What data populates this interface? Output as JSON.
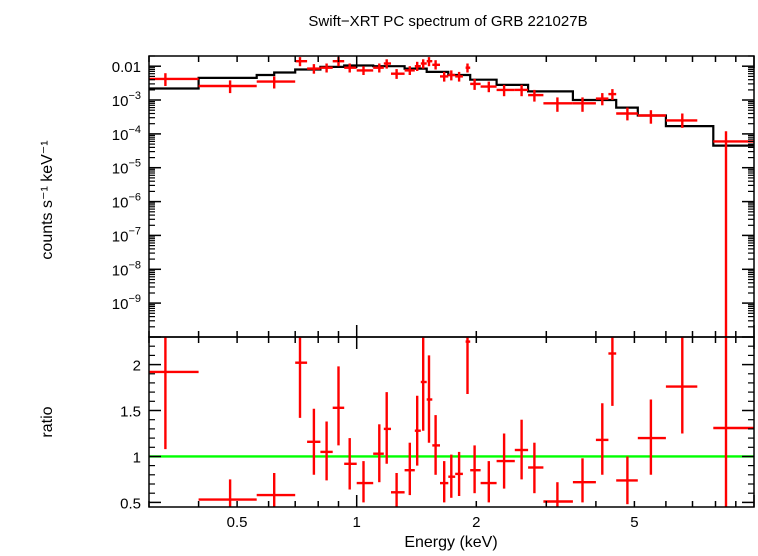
{
  "chart_data": [
    {
      "type": "scatter",
      "panel": "spectrum",
      "title": "Swift−XRT PC spectrum of GRB 221027B",
      "ylabel": "counts s⁻¹ keV⁻¹",
      "x_scale": "log",
      "y_scale": "log",
      "xlim": [
        0.3,
        10
      ],
      "ylim": [
        1e-10,
        0.02
      ],
      "colors": {
        "data": "#ff0000",
        "model": "#000000"
      },
      "y_ticks": [
        {
          "value": 0.01,
          "base": "0.01",
          "exp": ""
        },
        {
          "value": 0.001,
          "base": "10",
          "exp": "−3"
        },
        {
          "value": 0.0001,
          "base": "10",
          "exp": "−4"
        },
        {
          "value": 1e-05,
          "base": "10",
          "exp": "−5"
        },
        {
          "value": 1e-06,
          "base": "10",
          "exp": "−6"
        },
        {
          "value": 1e-07,
          "base": "10",
          "exp": "−7"
        },
        {
          "value": 1e-08,
          "base": "10",
          "exp": "−8"
        },
        {
          "value": 1e-09,
          "base": "10",
          "exp": "−9"
        }
      ],
      "data_points": [
        {
          "x": 0.33,
          "xlo": 0.3,
          "xhi": 0.4,
          "y": 0.0042,
          "ylo": 0.0026,
          "yhi": 0.0062
        },
        {
          "x": 0.48,
          "xlo": 0.4,
          "xhi": 0.56,
          "y": 0.0026,
          "ylo": 0.0016,
          "yhi": 0.0038
        },
        {
          "x": 0.62,
          "xlo": 0.56,
          "xhi": 0.7,
          "y": 0.0035,
          "ylo": 0.0022,
          "yhi": 0.005
        },
        {
          "x": 0.72,
          "xlo": 0.7,
          "xhi": 0.75,
          "y": 0.014,
          "ylo": 0.01,
          "yhi": 0.0185
        },
        {
          "x": 0.78,
          "xlo": 0.75,
          "xhi": 0.81,
          "y": 0.0085,
          "ylo": 0.006,
          "yhi": 0.0115
        },
        {
          "x": 0.84,
          "xlo": 0.81,
          "xhi": 0.87,
          "y": 0.009,
          "ylo": 0.0065,
          "yhi": 0.012
        },
        {
          "x": 0.9,
          "xlo": 0.87,
          "xhi": 0.93,
          "y": 0.014,
          "ylo": 0.01,
          "yhi": 0.0185
        },
        {
          "x": 0.96,
          "xlo": 0.93,
          "xhi": 1.0,
          "y": 0.009,
          "ylo": 0.0065,
          "yhi": 0.012
        },
        {
          "x": 1.04,
          "xlo": 1.0,
          "xhi": 1.1,
          "y": 0.0075,
          "ylo": 0.0055,
          "yhi": 0.01
        },
        {
          "x": 1.14,
          "xlo": 1.1,
          "xhi": 1.17,
          "y": 0.009,
          "ylo": 0.0065,
          "yhi": 0.012
        },
        {
          "x": 1.19,
          "xlo": 1.17,
          "xhi": 1.22,
          "y": 0.012,
          "ylo": 0.0085,
          "yhi": 0.016
        },
        {
          "x": 1.26,
          "xlo": 1.22,
          "xhi": 1.32,
          "y": 0.006,
          "ylo": 0.0042,
          "yhi": 0.0082
        },
        {
          "x": 1.36,
          "xlo": 1.32,
          "xhi": 1.4,
          "y": 0.0075,
          "ylo": 0.0055,
          "yhi": 0.01
        },
        {
          "x": 1.42,
          "xlo": 1.4,
          "xhi": 1.45,
          "y": 0.01,
          "ylo": 0.0072,
          "yhi": 0.0135
        },
        {
          "x": 1.47,
          "xlo": 1.45,
          "xhi": 1.5,
          "y": 0.012,
          "ylo": 0.0085,
          "yhi": 0.016
        },
        {
          "x": 1.52,
          "xlo": 1.5,
          "xhi": 1.55,
          "y": 0.014,
          "ylo": 0.01,
          "yhi": 0.0185
        },
        {
          "x": 1.58,
          "xlo": 1.55,
          "xhi": 1.62,
          "y": 0.011,
          "ylo": 0.008,
          "yhi": 0.015
        },
        {
          "x": 1.66,
          "xlo": 1.62,
          "xhi": 1.7,
          "y": 0.005,
          "ylo": 0.0035,
          "yhi": 0.0068
        },
        {
          "x": 1.73,
          "xlo": 1.7,
          "xhi": 1.77,
          "y": 0.0055,
          "ylo": 0.0038,
          "yhi": 0.0075
        },
        {
          "x": 1.81,
          "xlo": 1.77,
          "xhi": 1.85,
          "y": 0.005,
          "ylo": 0.0035,
          "yhi": 0.0068
        },
        {
          "x": 1.9,
          "xlo": 1.88,
          "xhi": 1.93,
          "y": 0.009,
          "ylo": 0.0065,
          "yhi": 0.012
        },
        {
          "x": 1.98,
          "xlo": 1.93,
          "xhi": 2.05,
          "y": 0.003,
          "ylo": 0.002,
          "yhi": 0.0042
        },
        {
          "x": 2.15,
          "xlo": 2.05,
          "xhi": 2.25,
          "y": 0.0025,
          "ylo": 0.0017,
          "yhi": 0.0035
        },
        {
          "x": 2.35,
          "xlo": 2.25,
          "xhi": 2.5,
          "y": 0.002,
          "ylo": 0.0013,
          "yhi": 0.0028
        },
        {
          "x": 2.6,
          "xlo": 2.5,
          "xhi": 2.7,
          "y": 0.002,
          "ylo": 0.0013,
          "yhi": 0.0028
        },
        {
          "x": 2.8,
          "xlo": 2.7,
          "xhi": 2.95,
          "y": 0.0014,
          "ylo": 0.0009,
          "yhi": 0.002
        },
        {
          "x": 3.2,
          "xlo": 2.95,
          "xhi": 3.5,
          "y": 0.0008,
          "ylo": 0.00045,
          "yhi": 0.0012
        },
        {
          "x": 3.7,
          "xlo": 3.5,
          "xhi": 4.0,
          "y": 0.0008,
          "ylo": 0.00045,
          "yhi": 0.0012
        },
        {
          "x": 4.15,
          "xlo": 4.0,
          "xhi": 4.3,
          "y": 0.0011,
          "ylo": 0.0007,
          "yhi": 0.0016
        },
        {
          "x": 4.4,
          "xlo": 4.3,
          "xhi": 4.5,
          "y": 0.0015,
          "ylo": 0.001,
          "yhi": 0.0021
        },
        {
          "x": 4.8,
          "xlo": 4.5,
          "xhi": 5.1,
          "y": 0.0004,
          "ylo": 0.00025,
          "yhi": 0.0006
        },
        {
          "x": 5.5,
          "xlo": 5.1,
          "xhi": 6.0,
          "y": 0.00035,
          "ylo": 0.0002,
          "yhi": 0.0005
        },
        {
          "x": 6.6,
          "xlo": 6.0,
          "xhi": 7.2,
          "y": 0.00025,
          "ylo": 0.00015,
          "yhi": 0.0004
        },
        {
          "x": 8.5,
          "xlo": 7.9,
          "xhi": 10.0,
          "y": 6e-05,
          "ylo": 1e-10,
          "yhi": 0.00012
        }
      ],
      "model_steps": [
        {
          "xlo": 0.3,
          "xhi": 0.4,
          "y": 0.0022
        },
        {
          "xlo": 0.4,
          "xhi": 0.56,
          "y": 0.0045
        },
        {
          "xlo": 0.56,
          "xhi": 0.62,
          "y": 0.0055
        },
        {
          "xlo": 0.62,
          "xhi": 0.7,
          "y": 0.0065
        },
        {
          "xlo": 0.7,
          "xhi": 0.81,
          "y": 0.008
        },
        {
          "xlo": 0.81,
          "xhi": 0.93,
          "y": 0.0095
        },
        {
          "xlo": 0.93,
          "xhi": 1.1,
          "y": 0.0105
        },
        {
          "xlo": 1.1,
          "xhi": 1.32,
          "y": 0.01
        },
        {
          "xlo": 1.32,
          "xhi": 1.5,
          "y": 0.0085
        },
        {
          "xlo": 1.5,
          "xhi": 1.7,
          "y": 0.0068
        },
        {
          "xlo": 1.7,
          "xhi": 1.93,
          "y": 0.0055
        },
        {
          "xlo": 1.93,
          "xhi": 2.25,
          "y": 0.004
        },
        {
          "xlo": 2.25,
          "xhi": 2.7,
          "y": 0.0028
        },
        {
          "xlo": 2.7,
          "xhi": 3.5,
          "y": 0.0018
        },
        {
          "xlo": 3.5,
          "xhi": 4.5,
          "y": 0.001
        },
        {
          "xlo": 4.5,
          "xhi": 5.1,
          "y": 0.0006
        },
        {
          "xlo": 5.1,
          "xhi": 6.0,
          "y": 0.00035
        },
        {
          "xlo": 6.0,
          "xhi": 7.2,
          "y": 0.00017
        },
        {
          "xlo": 7.2,
          "xhi": 7.9,
          "y": 0.00017
        },
        {
          "xlo": 7.9,
          "xhi": 10.0,
          "y": 4.5e-05
        }
      ]
    },
    {
      "type": "scatter",
      "panel": "ratio",
      "xlabel": "Energy (keV)",
      "ylabel": "ratio",
      "x_scale": "log",
      "xlim": [
        0.3,
        10
      ],
      "ylim": [
        0.45,
        2.3
      ],
      "x_ticks": [
        {
          "value": 0.5,
          "label": "0.5"
        },
        {
          "value": 1,
          "label": "1"
        },
        {
          "value": 2,
          "label": "2"
        },
        {
          "value": 5,
          "label": "5"
        }
      ],
      "y_ticks": [
        {
          "value": 0.5,
          "label": "0.5"
        },
        {
          "value": 1,
          "label": "1"
        },
        {
          "value": 1.5,
          "label": "1.5"
        },
        {
          "value": 2,
          "label": "2"
        }
      ],
      "reference_line": {
        "y": 1,
        "color": "#00ff00"
      },
      "colors": {
        "data": "#ff0000"
      },
      "data_points": [
        {
          "x": 0.33,
          "xlo": 0.3,
          "xhi": 0.4,
          "y": 1.92,
          "ylo": 1.08,
          "yhi": 2.3
        },
        {
          "x": 0.48,
          "xlo": 0.4,
          "xhi": 0.56,
          "y": 0.53,
          "ylo": 0.45,
          "yhi": 0.75
        },
        {
          "x": 0.62,
          "xlo": 0.56,
          "xhi": 0.7,
          "y": 0.58,
          "ylo": 0.45,
          "yhi": 0.82
        },
        {
          "x": 0.72,
          "xlo": 0.7,
          "xhi": 0.75,
          "y": 2.02,
          "ylo": 1.42,
          "yhi": 2.3
        },
        {
          "x": 0.78,
          "xlo": 0.75,
          "xhi": 0.81,
          "y": 1.16,
          "ylo": 0.8,
          "yhi": 1.52
        },
        {
          "x": 0.84,
          "xlo": 0.81,
          "xhi": 0.87,
          "y": 1.05,
          "ylo": 0.74,
          "yhi": 1.38
        },
        {
          "x": 0.9,
          "xlo": 0.87,
          "xhi": 0.93,
          "y": 1.53,
          "ylo": 1.12,
          "yhi": 1.98
        },
        {
          "x": 0.96,
          "xlo": 0.93,
          "xhi": 1.0,
          "y": 0.92,
          "ylo": 0.64,
          "yhi": 1.2
        },
        {
          "x": 1.04,
          "xlo": 1.0,
          "xhi": 1.1,
          "y": 0.71,
          "ylo": 0.5,
          "yhi": 0.95
        },
        {
          "x": 1.14,
          "xlo": 1.1,
          "xhi": 1.17,
          "y": 1.03,
          "ylo": 0.72,
          "yhi": 1.35
        },
        {
          "x": 1.19,
          "xlo": 1.17,
          "xhi": 1.22,
          "y": 1.3,
          "ylo": 0.92,
          "yhi": 1.7
        },
        {
          "x": 1.26,
          "xlo": 1.22,
          "xhi": 1.32,
          "y": 0.61,
          "ylo": 0.45,
          "yhi": 0.82
        },
        {
          "x": 1.36,
          "xlo": 1.32,
          "xhi": 1.4,
          "y": 0.85,
          "ylo": 0.58,
          "yhi": 1.15
        },
        {
          "x": 1.42,
          "xlo": 1.4,
          "xhi": 1.45,
          "y": 1.28,
          "ylo": 0.9,
          "yhi": 1.66
        },
        {
          "x": 1.47,
          "xlo": 1.45,
          "xhi": 1.5,
          "y": 1.81,
          "ylo": 1.28,
          "yhi": 2.3
        },
        {
          "x": 1.52,
          "xlo": 1.5,
          "xhi": 1.55,
          "y": 1.62,
          "ylo": 1.15,
          "yhi": 2.1
        },
        {
          "x": 1.58,
          "xlo": 1.55,
          "xhi": 1.62,
          "y": 1.12,
          "ylo": 0.8,
          "yhi": 1.45
        },
        {
          "x": 1.66,
          "xlo": 1.62,
          "xhi": 1.7,
          "y": 0.71,
          "ylo": 0.5,
          "yhi": 0.95
        },
        {
          "x": 1.73,
          "xlo": 1.7,
          "xhi": 1.77,
          "y": 0.78,
          "ylo": 0.55,
          "yhi": 1.02
        },
        {
          "x": 1.81,
          "xlo": 1.77,
          "xhi": 1.85,
          "y": 0.81,
          "ylo": 0.57,
          "yhi": 1.05
        },
        {
          "x": 1.9,
          "xlo": 1.88,
          "xhi": 1.93,
          "y": 2.25,
          "ylo": 1.68,
          "yhi": 2.3
        },
        {
          "x": 1.98,
          "xlo": 1.93,
          "xhi": 2.05,
          "y": 0.85,
          "ylo": 0.6,
          "yhi": 1.12
        },
        {
          "x": 2.15,
          "xlo": 2.05,
          "xhi": 2.25,
          "y": 0.71,
          "ylo": 0.5,
          "yhi": 0.95
        },
        {
          "x": 2.35,
          "xlo": 2.25,
          "xhi": 2.5,
          "y": 0.95,
          "ylo": 0.65,
          "yhi": 1.25
        },
        {
          "x": 2.6,
          "xlo": 2.5,
          "xhi": 2.7,
          "y": 1.07,
          "ylo": 0.75,
          "yhi": 1.4
        },
        {
          "x": 2.8,
          "xlo": 2.7,
          "xhi": 2.95,
          "y": 0.88,
          "ylo": 0.6,
          "yhi": 1.15
        },
        {
          "x": 3.2,
          "xlo": 2.95,
          "xhi": 3.5,
          "y": 0.51,
          "ylo": 0.45,
          "yhi": 0.72
        },
        {
          "x": 3.7,
          "xlo": 3.5,
          "xhi": 4.0,
          "y": 0.72,
          "ylo": 0.5,
          "yhi": 0.98
        },
        {
          "x": 4.15,
          "xlo": 4.0,
          "xhi": 4.3,
          "y": 1.18,
          "ylo": 0.8,
          "yhi": 1.58
        },
        {
          "x": 4.4,
          "xlo": 4.3,
          "xhi": 4.5,
          "y": 2.12,
          "ylo": 1.55,
          "yhi": 2.3
        },
        {
          "x": 4.8,
          "xlo": 4.5,
          "xhi": 5.1,
          "y": 0.74,
          "ylo": 0.48,
          "yhi": 1.0
        },
        {
          "x": 5.5,
          "xlo": 5.1,
          "xhi": 6.0,
          "y": 1.2,
          "ylo": 0.8,
          "yhi": 1.62
        },
        {
          "x": 6.6,
          "xlo": 6.0,
          "xhi": 7.2,
          "y": 1.76,
          "ylo": 1.25,
          "yhi": 2.3
        },
        {
          "x": 8.5,
          "xlo": 7.9,
          "xhi": 10.0,
          "y": 1.31,
          "ylo": 0.45,
          "yhi": 2.3
        }
      ]
    }
  ]
}
